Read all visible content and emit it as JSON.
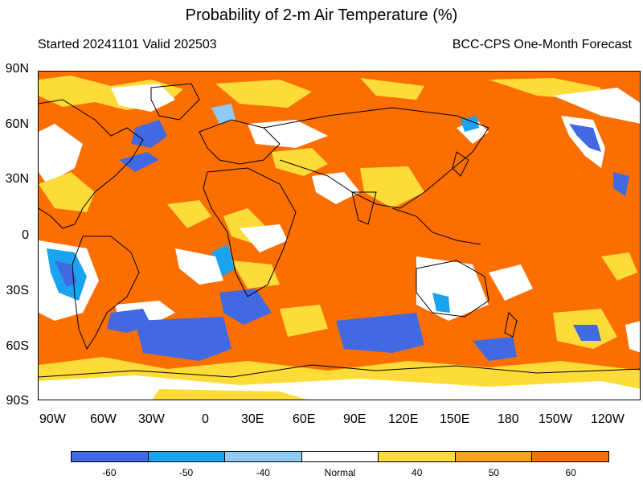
{
  "title": "Probability of 2-m Air Temperature (%)",
  "subtitle_left": "Started 20241101  Valid 202503",
  "subtitle_right": "BCC-CPS One-Month Forecast",
  "lat_labels": [
    "90N",
    "60N",
    "30N",
    "0",
    "30S",
    "60S",
    "90S"
  ],
  "lon_labels": [
    "90W",
    "60W",
    "30W",
    "0",
    "30E",
    "60E",
    "90E",
    "120E",
    "150E",
    "180",
    "150W",
    "120W"
  ],
  "colorbar": {
    "categories": [
      {
        "label": "-60",
        "color": "#4169e1"
      },
      {
        "label": "-50",
        "color": "#1aa3ef"
      },
      {
        "label": "-40",
        "color": "#8fcaf5"
      },
      {
        "label": "Normal",
        "color": "#ffffff"
      },
      {
        "label": "40",
        "color": "#fddc3a"
      },
      {
        "label": "50",
        "color": "#f7a21b"
      },
      {
        "label": "60",
        "color": "#fb6f02"
      }
    ]
  },
  "colors": {
    "dominant": "#fb6f02",
    "coastline": "#000000"
  }
}
